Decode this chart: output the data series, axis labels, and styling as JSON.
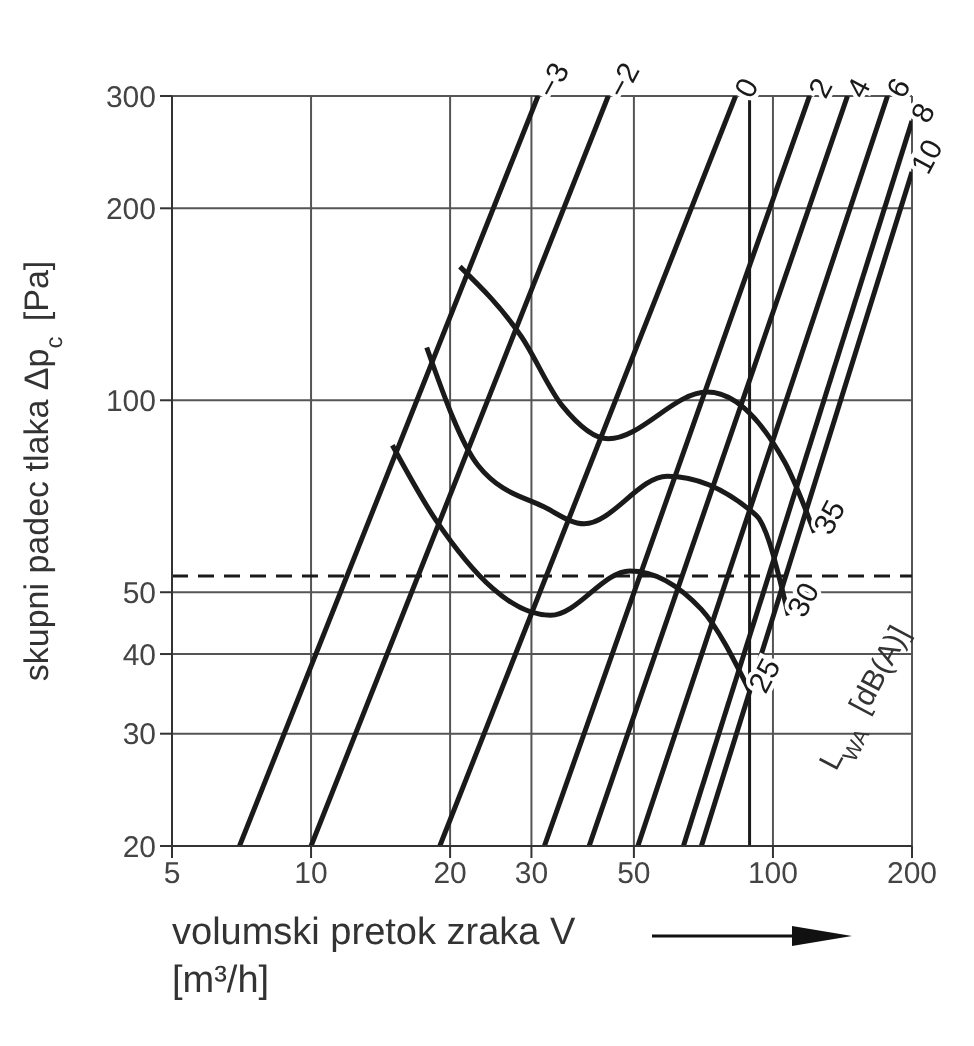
{
  "chart_data": {
    "type": "line",
    "xlabel": "volumski pretok zraka V [m³/h]",
    "ylabel": "skupni padec tlaka Δp$_{c}$ [Pa]",
    "log": "xy",
    "xlim": [
      5,
      200
    ],
    "ylim": [
      20,
      300
    ],
    "xticks": [
      5,
      10,
      20,
      30,
      50,
      100,
      200
    ],
    "yticks": [
      20,
      30,
      40,
      50,
      100,
      200,
      300
    ],
    "grid": true,
    "marker": "none",
    "line_style": "solid",
    "series": [
      {
        "name": "−3",
        "color": "#1a1a1a",
        "x": [
          7,
          31
        ],
        "values": [
          20,
          300
        ]
      },
      {
        "name": "−2",
        "color": "#1a1a1a",
        "x": [
          10,
          44
        ],
        "values": [
          20,
          300
        ]
      },
      {
        "name": "0",
        "color": "#1a1a1a",
        "x": [
          19,
          83
        ],
        "values": [
          20,
          300
        ]
      },
      {
        "name": "2",
        "color": "#1a1a1a",
        "x": [
          32,
          120
        ],
        "values": [
          20,
          300
        ]
      },
      {
        "name": "4",
        "color": "#1a1a1a",
        "x": [
          40,
          145
        ],
        "values": [
          20,
          300
        ]
      },
      {
        "name": "6",
        "color": "#1a1a1a",
        "x": [
          51,
          177
        ],
        "values": [
          20,
          300
        ]
      },
      {
        "name": "8",
        "color": "#1a1a1a",
        "x": [
          64,
          200
        ],
        "values": [
          20,
          274
        ]
      },
      {
        "name": "10",
        "color": "#1a1a1a",
        "x": [
          70,
          200
        ],
        "values": [
          20,
          228
        ]
      },
      {
        "name": "35",
        "color": "#1a1a1a",
        "x": [
          21,
          28.5,
          35,
          44,
          72,
          106,
          123
        ],
        "values": [
          162,
          126,
          98,
          87,
          103,
          80,
          62
        ]
      },
      {
        "name": "30",
        "color": "#1a1a1a",
        "x": [
          17.8,
          23,
          32,
          39,
          59,
          92,
          108
        ],
        "values": [
          121,
          79,
          68,
          64,
          76,
          66,
          46
        ]
      },
      {
        "name": "25",
        "color": "#1a1a1a",
        "x": [
          15,
          18.6,
          33,
          49,
          70,
          89
        ],
        "values": [
          85,
          65,
          46,
          54,
          47,
          35
        ]
      }
    ],
    "ref_lines": [
      {
        "axis": "y",
        "value": 53,
        "line_style": "dashed",
        "color": "#1a1a1a"
      },
      {
        "axis": "x",
        "value": 89,
        "color": "#1a1a1a"
      }
    ],
    "annotations": [
      "L$_{WA}$ [dB(A)]"
    ]
  }
}
